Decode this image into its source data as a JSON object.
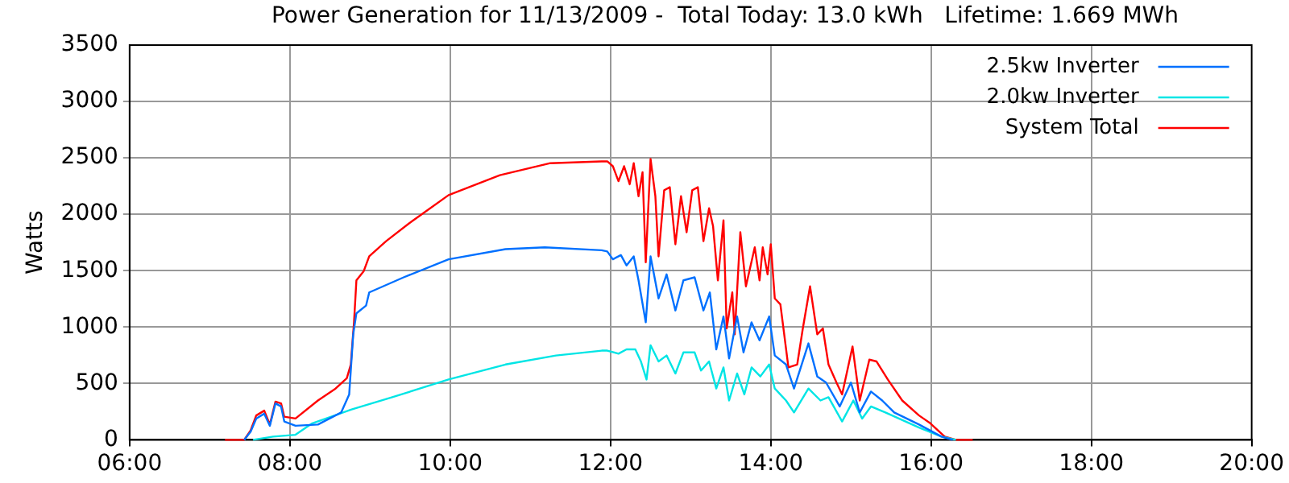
{
  "chart_data": {
    "type": "line",
    "title": "Power Generation for 11/13/2009 -  Total Today: 13.0 kWh   Lifetime: 1.669 MWh",
    "ylabel": "Watts",
    "xlim": [
      6,
      20
    ],
    "xticks": [
      {
        "value": 6,
        "label": "06:00"
      },
      {
        "value": 8,
        "label": "08:00"
      },
      {
        "value": 10,
        "label": "10:00"
      },
      {
        "value": 12,
        "label": "12:00"
      },
      {
        "value": 14,
        "label": "14:00"
      },
      {
        "value": 16,
        "label": "16:00"
      },
      {
        "value": 18,
        "label": "18:00"
      },
      {
        "value": 20,
        "label": "20:00"
      }
    ],
    "ylim": [
      0,
      3500
    ],
    "yticks": [
      0,
      500,
      1000,
      1500,
      2000,
      2500,
      3000,
      3500
    ],
    "grid": true,
    "legend": "top right",
    "marker": "none",
    "line_style": "solid",
    "series": [
      {
        "name": "2.5kw Inverter",
        "color": "#0070ff",
        "x": [
          7.43,
          7.51,
          7.58,
          7.68,
          7.75,
          7.82,
          7.89,
          7.93,
          8.07,
          8.35,
          8.64,
          8.74,
          8.79,
          8.83,
          8.95,
          8.99,
          9.42,
          9.98,
          10.69,
          11.18,
          11.89,
          11.96,
          12.03,
          12.13,
          12.2,
          12.29,
          12.35,
          12.44,
          12.5,
          12.6,
          12.7,
          12.81,
          12.91,
          13.05,
          13.16,
          13.24,
          13.32,
          13.41,
          13.48,
          13.58,
          13.66,
          13.76,
          13.86,
          13.98,
          14.05,
          14.19,
          14.29,
          14.47,
          14.58,
          14.69,
          14.86,
          15.0,
          15.11,
          15.25,
          15.39,
          15.54,
          15.85,
          16.13,
          16.27
        ],
        "values": [
          0,
          72,
          189,
          232,
          125,
          323,
          296,
          163,
          125,
          136,
          243,
          403,
          935,
          1122,
          1190,
          1307,
          1441,
          1601,
          1691,
          1707,
          1681,
          1670,
          1601,
          1638,
          1547,
          1627,
          1414,
          1042,
          1627,
          1254,
          1467,
          1147,
          1414,
          1441,
          1147,
          1307,
          802,
          1094,
          722,
          1094,
          775,
          1042,
          882,
          1094,
          748,
          668,
          455,
          855,
          562,
          508,
          296,
          508,
          243,
          428,
          349,
          243,
          136,
          29,
          0
        ]
      },
      {
        "name": "2.0kw Inverter",
        "color": "#00e5e5",
        "x": [
          7.54,
          7.79,
          8.07,
          8.28,
          8.77,
          9.27,
          9.98,
          10.69,
          11.32,
          11.89,
          11.96,
          12.1,
          12.2,
          12.31,
          12.38,
          12.45,
          12.5,
          12.6,
          12.7,
          12.81,
          12.91,
          13.05,
          13.13,
          13.23,
          13.32,
          13.41,
          13.48,
          13.58,
          13.67,
          13.76,
          13.87,
          13.98,
          14.05,
          14.19,
          14.29,
          14.47,
          14.62,
          14.72,
          14.89,
          15.03,
          15.14,
          15.25,
          15.43,
          15.85,
          16.13,
          16.31
        ],
        "values": [
          0,
          29,
          45,
          147,
          269,
          376,
          535,
          668,
          748,
          791,
          791,
          764,
          802,
          802,
          695,
          535,
          839,
          695,
          748,
          588,
          775,
          775,
          615,
          695,
          455,
          642,
          349,
          588,
          403,
          642,
          562,
          668,
          455,
          349,
          243,
          455,
          349,
          378,
          163,
          349,
          189,
          296,
          243,
          109,
          29,
          0
        ]
      },
      {
        "name": "System Total",
        "color": "#ff0000",
        "x": [
          7.19,
          7.43,
          7.51,
          7.58,
          7.68,
          7.75,
          7.82,
          7.89,
          7.93,
          8.07,
          8.35,
          8.57,
          8.71,
          8.76,
          8.8,
          8.83,
          8.92,
          8.99,
          9.2,
          9.49,
          9.98,
          10.62,
          11.25,
          11.89,
          11.96,
          12.03,
          12.1,
          12.17,
          12.24,
          12.29,
          12.35,
          12.4,
          12.44,
          12.5,
          12.56,
          12.6,
          12.67,
          12.74,
          12.81,
          12.88,
          12.95,
          13.02,
          13.09,
          13.16,
          13.23,
          13.28,
          13.34,
          13.41,
          13.45,
          13.52,
          13.55,
          13.62,
          13.69,
          13.8,
          13.86,
          13.9,
          13.96,
          14.0,
          14.05,
          14.12,
          14.22,
          14.33,
          14.4,
          14.49,
          14.58,
          14.65,
          14.72,
          14.82,
          14.89,
          15.02,
          15.11,
          15.23,
          15.32,
          15.46,
          15.64,
          15.85,
          15.99,
          16.17,
          16.31,
          16.52
        ],
        "values": [
          0,
          0,
          83,
          216,
          259,
          136,
          339,
          323,
          205,
          189,
          349,
          455,
          546,
          668,
          1042,
          1414,
          1494,
          1627,
          1761,
          1921,
          2170,
          2346,
          2453,
          2469,
          2469,
          2426,
          2293,
          2426,
          2266,
          2453,
          2160,
          2373,
          1574,
          2490,
          2160,
          1627,
          2213,
          2240,
          1734,
          2160,
          1841,
          2213,
          2240,
          1761,
          2053,
          1894,
          1414,
          1947,
          988,
          1307,
          935,
          1841,
          1361,
          1707,
          1414,
          1707,
          1467,
          1734,
          1254,
          1201,
          642,
          668,
          988,
          1361,
          935,
          988,
          668,
          508,
          403,
          828,
          349,
          711,
          695,
          535,
          349,
          216,
          147,
          29,
          0,
          0
        ]
      }
    ]
  }
}
